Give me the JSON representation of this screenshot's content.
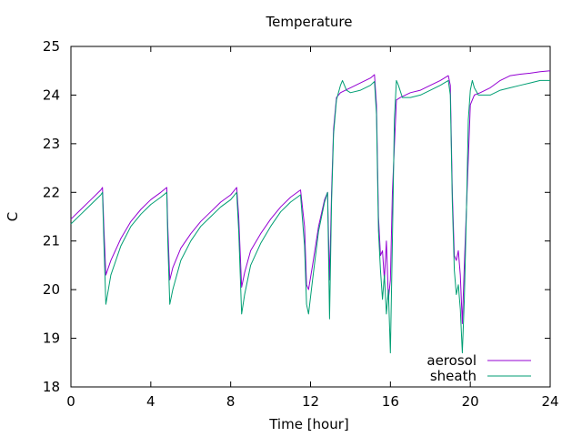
{
  "chart_data": {
    "type": "line",
    "title": "Temperature",
    "xlabel": "Time [hour]",
    "ylabel": "C",
    "xlim": [
      0,
      24
    ],
    "ylim": [
      18,
      25
    ],
    "xticks": [
      0,
      4,
      8,
      12,
      16,
      20,
      24
    ],
    "yticks": [
      18,
      19,
      20,
      21,
      22,
      23,
      24,
      25
    ],
    "grid": false,
    "legend": "bottom-right",
    "series": [
      {
        "name": "aerosol",
        "color": "#9400d3",
        "x": [
          0,
          0.5,
          1.0,
          1.5,
          1.58,
          1.65,
          1.75,
          2.0,
          2.5,
          3.0,
          3.5,
          4.0,
          4.5,
          4.8,
          4.85,
          4.95,
          5.1,
          5.5,
          6.0,
          6.5,
          7.0,
          7.5,
          8.0,
          8.3,
          8.4,
          8.55,
          8.7,
          9.0,
          9.5,
          10.0,
          10.5,
          11.0,
          11.5,
          11.7,
          11.8,
          11.9,
          12.1,
          12.4,
          12.7,
          12.85,
          12.95,
          13.05,
          13.15,
          13.3,
          13.5,
          14.0,
          14.5,
          15.0,
          15.2,
          15.3,
          15.4,
          15.5,
          15.6,
          15.7,
          15.8,
          15.9,
          16.0,
          16.1,
          16.3,
          16.5,
          17.0,
          17.5,
          18.0,
          18.5,
          18.9,
          19.0,
          19.1,
          19.2,
          19.3,
          19.4,
          19.5,
          19.6,
          19.7,
          19.8,
          20.0,
          20.2,
          20.5,
          21.0,
          21.5,
          22.0,
          22.5,
          23.0,
          23.5,
          24.0
        ],
        "y": [
          21.45,
          21.65,
          21.85,
          22.05,
          22.1,
          21.3,
          20.3,
          20.6,
          21.05,
          21.4,
          21.65,
          21.85,
          22.0,
          22.1,
          21.3,
          20.2,
          20.45,
          20.85,
          21.15,
          21.4,
          21.6,
          21.8,
          21.95,
          22.1,
          21.5,
          20.05,
          20.35,
          20.8,
          21.15,
          21.45,
          21.7,
          21.9,
          22.05,
          21.3,
          20.1,
          20.0,
          20.5,
          21.3,
          21.85,
          22.0,
          20.2,
          22.0,
          23.3,
          23.95,
          24.05,
          24.15,
          24.25,
          24.35,
          24.42,
          23.8,
          21.5,
          20.7,
          20.8,
          20.2,
          21.0,
          19.8,
          20.2,
          22.0,
          23.9,
          23.95,
          24.05,
          24.1,
          24.2,
          24.3,
          24.4,
          24.2,
          22.0,
          20.7,
          20.6,
          20.8,
          20.3,
          19.3,
          20.5,
          21.6,
          23.8,
          24.0,
          24.05,
          24.15,
          24.3,
          24.4,
          24.43,
          24.45,
          24.48,
          24.5
        ]
      },
      {
        "name": "sheath",
        "color": "#009e73",
        "x": [
          0,
          0.5,
          1.0,
          1.5,
          1.58,
          1.65,
          1.75,
          2.0,
          2.5,
          3.0,
          3.5,
          4.0,
          4.5,
          4.8,
          4.85,
          4.95,
          5.1,
          5.5,
          6.0,
          6.5,
          7.0,
          7.5,
          8.0,
          8.3,
          8.4,
          8.55,
          8.7,
          9.0,
          9.5,
          10.0,
          10.5,
          11.0,
          11.5,
          11.7,
          11.8,
          11.9,
          12.1,
          12.4,
          12.7,
          12.85,
          12.95,
          13.05,
          13.15,
          13.3,
          13.5,
          13.6,
          13.8,
          14.0,
          14.5,
          15.0,
          15.2,
          15.3,
          15.4,
          15.5,
          15.6,
          15.7,
          15.8,
          15.9,
          16.0,
          16.1,
          16.2,
          16.3,
          16.4,
          16.6,
          17.0,
          17.5,
          18.0,
          18.5,
          18.9,
          19.0,
          19.1,
          19.2,
          19.3,
          19.4,
          19.5,
          19.6,
          19.7,
          19.8,
          19.9,
          20.0,
          20.1,
          20.2,
          20.4,
          20.5,
          21.0,
          21.5,
          22.0,
          22.5,
          23.0,
          23.5,
          24.0
        ],
        "y": [
          21.35,
          21.55,
          21.75,
          21.95,
          22.0,
          21.0,
          19.7,
          20.3,
          20.9,
          21.3,
          21.55,
          21.75,
          21.9,
          22.0,
          21.0,
          19.7,
          20.0,
          20.6,
          21.0,
          21.3,
          21.5,
          21.7,
          21.85,
          22.0,
          21.2,
          19.5,
          19.9,
          20.5,
          20.95,
          21.3,
          21.6,
          21.8,
          21.95,
          20.9,
          19.7,
          19.5,
          20.2,
          21.2,
          21.8,
          22.0,
          19.4,
          21.8,
          23.2,
          23.9,
          24.2,
          24.3,
          24.1,
          24.05,
          24.1,
          24.2,
          24.28,
          23.6,
          21.2,
          20.4,
          19.8,
          20.3,
          19.5,
          20.0,
          18.7,
          21.0,
          23.5,
          24.3,
          24.2,
          23.95,
          23.95,
          24.0,
          24.1,
          24.2,
          24.3,
          24.0,
          21.8,
          20.4,
          19.9,
          20.1,
          19.6,
          18.7,
          19.8,
          21.5,
          23.5,
          24.1,
          24.3,
          24.15,
          24.0,
          24.0,
          24.0,
          24.1,
          24.15,
          24.2,
          24.25,
          24.3,
          24.3
        ]
      }
    ]
  }
}
